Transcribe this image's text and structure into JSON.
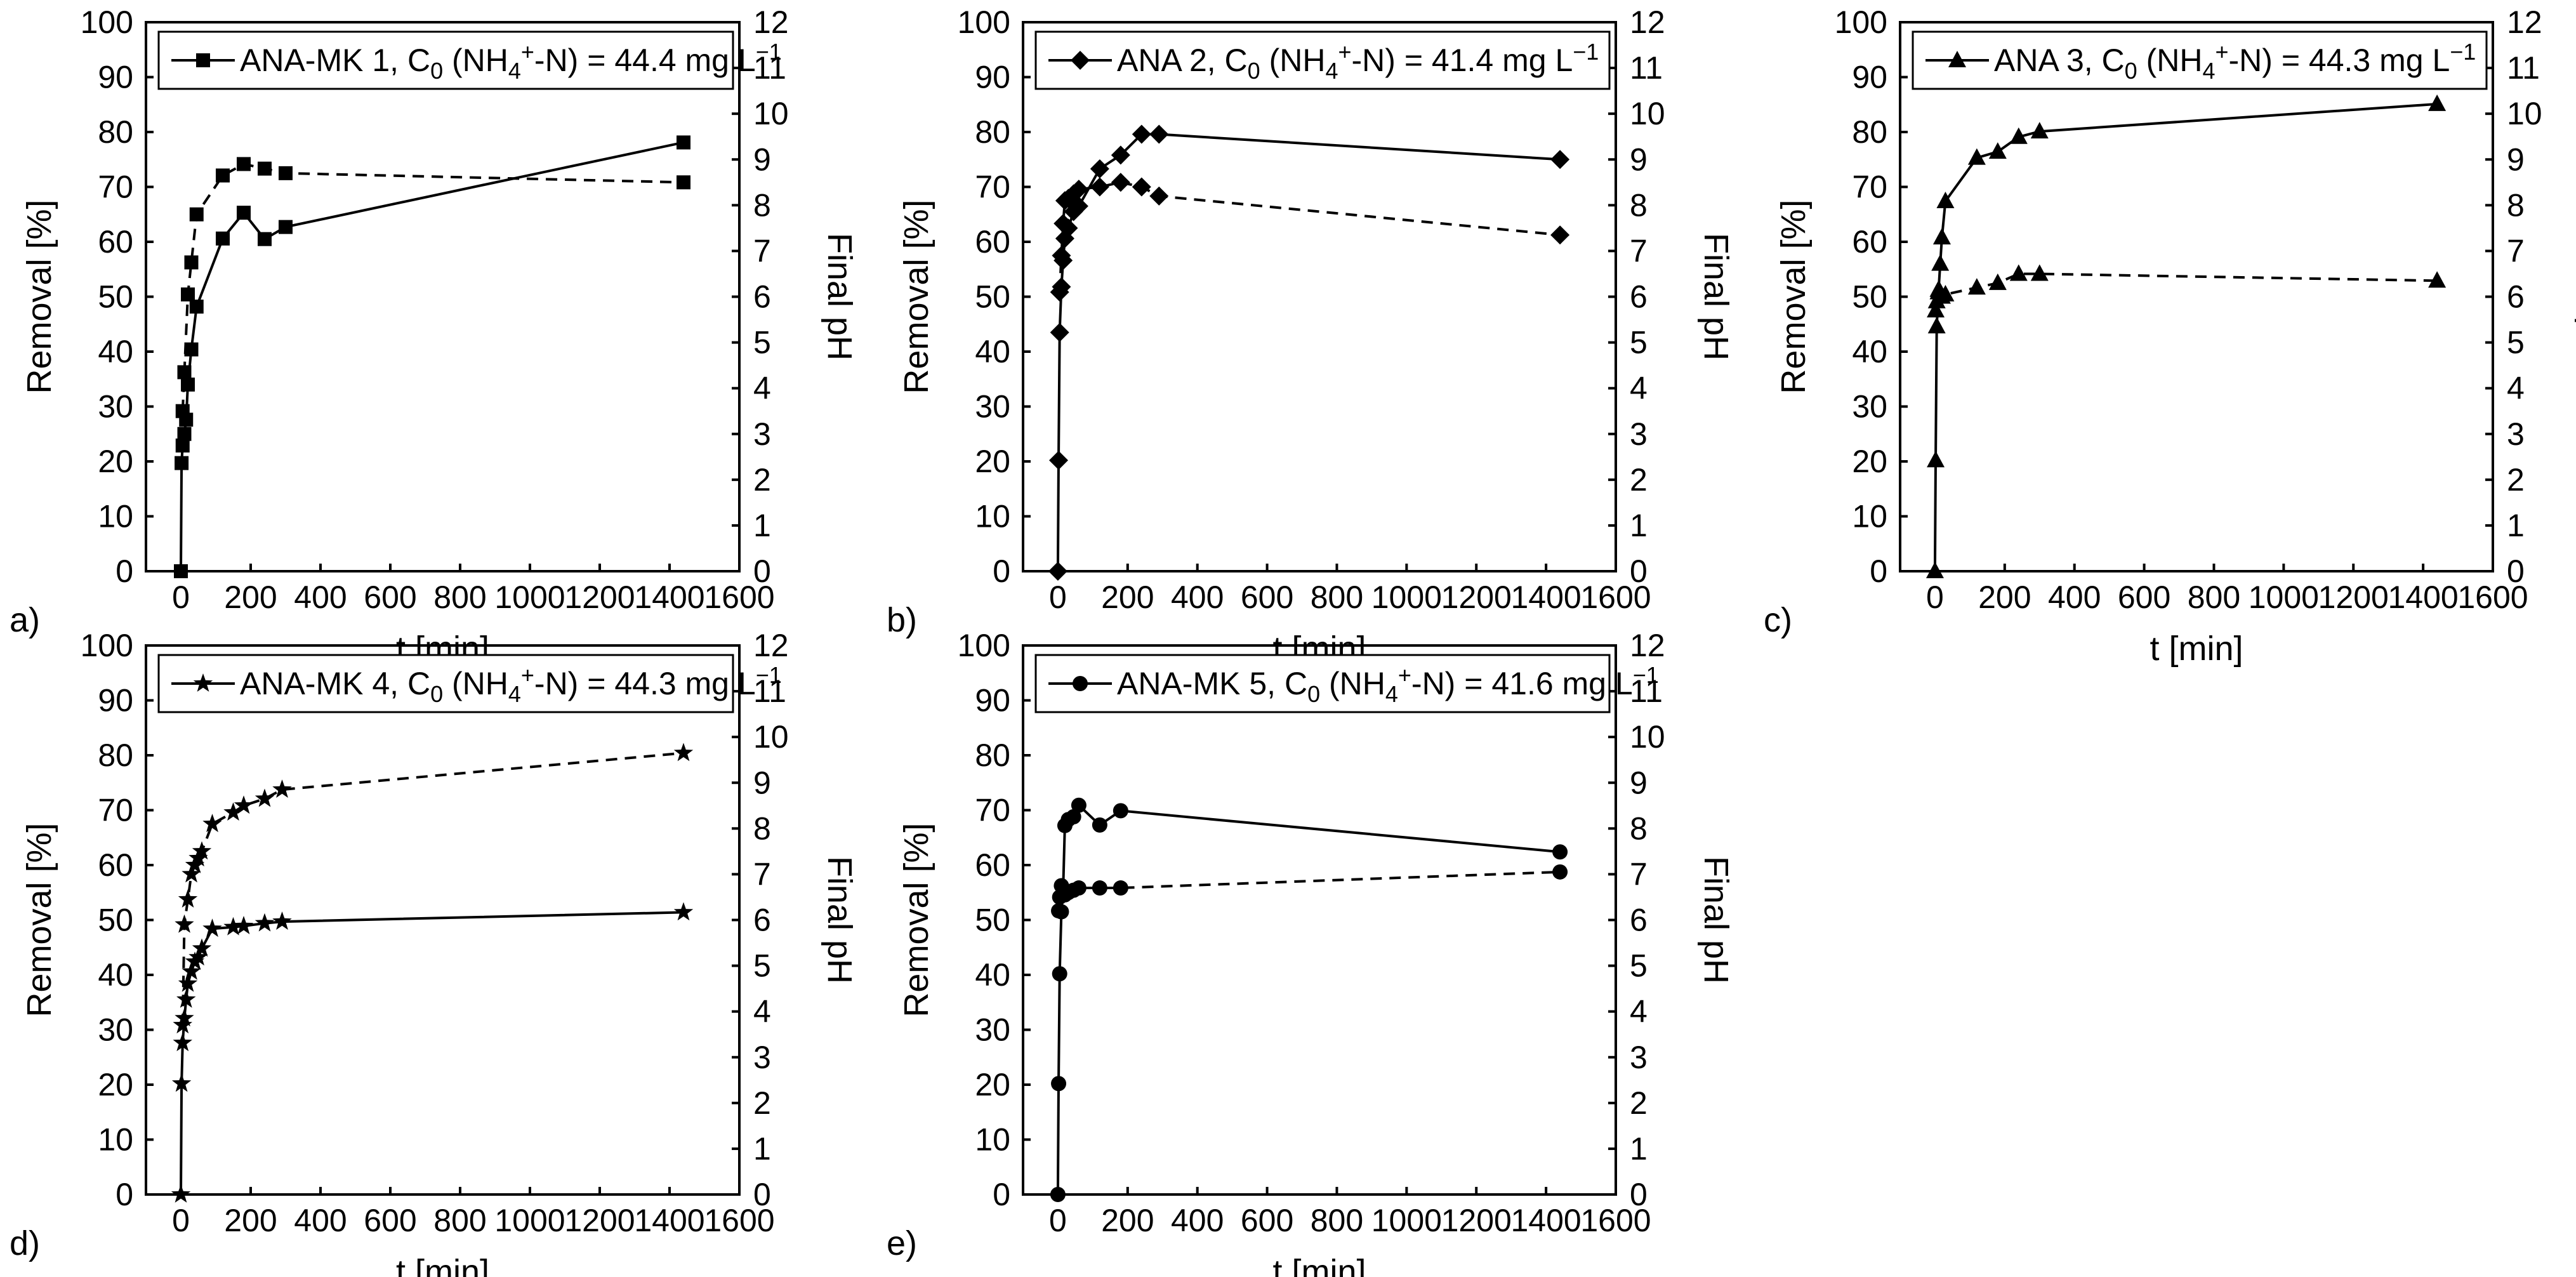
{
  "figure": {
    "x_label": "t [min]",
    "y_left_label": "Removal [%]",
    "y_right_label": "Final pH"
  },
  "chart_data": [
    {
      "type": "line",
      "panel_label": "a)",
      "legend": "ANA-MK 1",
      "legend_prefix": "ANA-MK 1, C",
      "legend_value": " = 44.4 mg L",
      "marker": "square",
      "xlim": [
        -100,
        1600
      ],
      "ylim": [
        0,
        100
      ],
      "y2lim": [
        0,
        12
      ],
      "xticks": [
        0,
        200,
        400,
        600,
        800,
        1000,
        1200,
        1400,
        1600
      ],
      "yticks": [
        0,
        10,
        20,
        30,
        40,
        50,
        60,
        70,
        80,
        90,
        100
      ],
      "y2ticks": [
        0,
        1,
        2,
        3,
        4,
        5,
        6,
        7,
        8,
        9,
        10,
        11,
        12
      ],
      "series": [
        {
          "name": "Removal",
          "axis": "left",
          "dash": false,
          "x": [
            0,
            2,
            5,
            10,
            15,
            20,
            30,
            45,
            120,
            180,
            240,
            300,
            1440
          ],
          "values": [
            0,
            19.7,
            22.9,
            25.0,
            27.6,
            34.0,
            40.4,
            48.2,
            60.6,
            65.3,
            60.5,
            62.7,
            78.1
          ]
        },
        {
          "name": "Final pH",
          "axis": "right",
          "dash": true,
          "x": [
            5,
            10,
            20,
            30,
            45,
            120,
            180,
            240,
            300,
            1440
          ],
          "values": [
            3.5,
            4.35,
            6.05,
            6.75,
            7.8,
            8.65,
            8.9,
            8.8,
            8.7,
            8.5
          ]
        }
      ]
    },
    {
      "type": "line",
      "panel_label": "b)",
      "legend": "ANA 2",
      "legend_prefix": "ANA 2, C",
      "legend_value": " = 41.4 mg L",
      "marker": "diamond",
      "xlim": [
        -100,
        1600
      ],
      "ylim": [
        0,
        100
      ],
      "y2lim": [
        0,
        12
      ],
      "xticks": [
        0,
        200,
        400,
        600,
        800,
        1000,
        1200,
        1400,
        1600
      ],
      "yticks": [
        0,
        10,
        20,
        30,
        40,
        50,
        60,
        70,
        80,
        90,
        100
      ],
      "y2ticks": [
        0,
        1,
        2,
        3,
        4,
        5,
        6,
        7,
        8,
        9,
        10,
        11,
        12
      ],
      "series": [
        {
          "name": "Removal",
          "axis": "left",
          "dash": false,
          "x": [
            0,
            2,
            5,
            10,
            15,
            20,
            30,
            45,
            60,
            120,
            180,
            240,
            290,
            1440
          ],
          "values": [
            0,
            20.2,
            43.5,
            51.8,
            56.6,
            60.6,
            62.5,
            65.5,
            66.5,
            73.3,
            75.8,
            79.6,
            79.6,
            75.0
          ]
        },
        {
          "name": "Final pH",
          "axis": "right",
          "dash": true,
          "x": [
            5,
            10,
            15,
            20,
            30,
            45,
            60,
            120,
            180,
            240,
            290,
            1440
          ],
          "values": [
            6.1,
            6.9,
            7.6,
            8.1,
            8.15,
            8.25,
            8.35,
            8.4,
            8.5,
            8.4,
            8.2,
            7.35
          ]
        }
      ]
    },
    {
      "type": "line",
      "panel_label": "c)",
      "legend": "ANA 3",
      "legend_prefix": "ANA 3, C",
      "legend_value": " = 44.3 mg L",
      "marker": "triangle",
      "xlim": [
        -100,
        1600
      ],
      "ylim": [
        0,
        100
      ],
      "y2lim": [
        0,
        12
      ],
      "xticks": [
        0,
        200,
        400,
        600,
        800,
        1000,
        1200,
        1400,
        1600
      ],
      "yticks": [
        0,
        10,
        20,
        30,
        40,
        50,
        60,
        70,
        80,
        90,
        100
      ],
      "y2ticks": [
        0,
        1,
        2,
        3,
        4,
        5,
        6,
        7,
        8,
        9,
        10,
        11,
        12
      ],
      "series": [
        {
          "name": "Removal",
          "axis": "left",
          "dash": false,
          "x": [
            0,
            2,
            5,
            10,
            15,
            20,
            30,
            120,
            180,
            240,
            300,
            1440
          ],
          "values": [
            0,
            20.2,
            44.6,
            50.8,
            56.0,
            60.8,
            67.4,
            75.3,
            76.4,
            79.1,
            80.1,
            85.1
          ]
        },
        {
          "name": "Final pH",
          "axis": "right",
          "dash": true,
          "x": [
            2,
            5,
            10,
            15,
            20,
            30,
            120,
            180,
            240,
            300,
            1440
          ],
          "values": [
            5.7,
            5.9,
            6.15,
            6.1,
            6.0,
            6.05,
            6.2,
            6.3,
            6.5,
            6.5,
            6.35
          ]
        }
      ]
    },
    {
      "type": "line",
      "panel_label": "d)",
      "legend": "ANA-MK 4",
      "legend_prefix": "ANA-MK 4, C",
      "legend_value": " = 44.3 mg L",
      "marker": "star",
      "xlim": [
        -100,
        1600
      ],
      "ylim": [
        0,
        100
      ],
      "y2lim": [
        0,
        12
      ],
      "xticks": [
        0,
        200,
        400,
        600,
        800,
        1000,
        1200,
        1400,
        1600
      ],
      "yticks": [
        0,
        10,
        20,
        30,
        40,
        50,
        60,
        70,
        80,
        90,
        100
      ],
      "y2ticks": [
        0,
        1,
        2,
        3,
        4,
        5,
        6,
        7,
        8,
        9,
        10,
        11,
        12
      ],
      "series": [
        {
          "name": "Removal",
          "axis": "left",
          "dash": false,
          "x": [
            0,
            2,
            5,
            10,
            15,
            20,
            30,
            40,
            50,
            60,
            90,
            150,
            180,
            240,
            290,
            1440
          ],
          "values": [
            0,
            20.2,
            27.6,
            32.1,
            35.5,
            38.4,
            40.6,
            42.4,
            43.2,
            44.8,
            48.4,
            48.7,
            48.9,
            49.4,
            49.7,
            51.4
          ]
        },
        {
          "name": "Final pH",
          "axis": "right",
          "dash": true,
          "x": [
            5,
            10,
            20,
            30,
            40,
            50,
            60,
            90,
            150,
            180,
            240,
            290,
            1440
          ],
          "values": [
            3.7,
            5.9,
            6.45,
            7.0,
            7.2,
            7.35,
            7.5,
            8.1,
            8.35,
            8.5,
            8.65,
            8.85,
            9.65
          ]
        }
      ]
    },
    {
      "type": "line",
      "panel_label": "e)",
      "legend": "ANA-MK 5",
      "legend_prefix": "ANA-MK 5, C",
      "legend_value": " = 41.6 mg L",
      "marker": "circle",
      "xlim": [
        -100,
        1600
      ],
      "ylim": [
        0,
        100
      ],
      "y2lim": [
        0,
        12
      ],
      "xticks": [
        0,
        200,
        400,
        600,
        800,
        1000,
        1200,
        1400,
        1600
      ],
      "yticks": [
        0,
        10,
        20,
        30,
        40,
        50,
        60,
        70,
        80,
        90,
        100
      ],
      "y2ticks": [
        0,
        1,
        2,
        3,
        4,
        5,
        6,
        7,
        8,
        9,
        10,
        11,
        12
      ],
      "series": [
        {
          "name": "Removal",
          "axis": "left",
          "dash": false,
          "x": [
            0,
            2,
            5,
            10,
            15,
            20,
            30,
            45,
            60,
            120,
            180,
            1440
          ],
          "values": [
            0,
            20.2,
            40.2,
            51.5,
            55.7,
            67.2,
            68.3,
            68.8,
            70.9,
            67.3,
            69.9,
            62.4
          ]
        },
        {
          "name": "Final pH",
          "axis": "right",
          "dash": true,
          "x": [
            2,
            5,
            10,
            15,
            20,
            30,
            45,
            60,
            120,
            180,
            1440
          ],
          "values": [
            6.2,
            6.5,
            6.75,
            6.6,
            6.55,
            6.6,
            6.65,
            6.7,
            6.7,
            6.7,
            7.05
          ]
        }
      ]
    }
  ]
}
